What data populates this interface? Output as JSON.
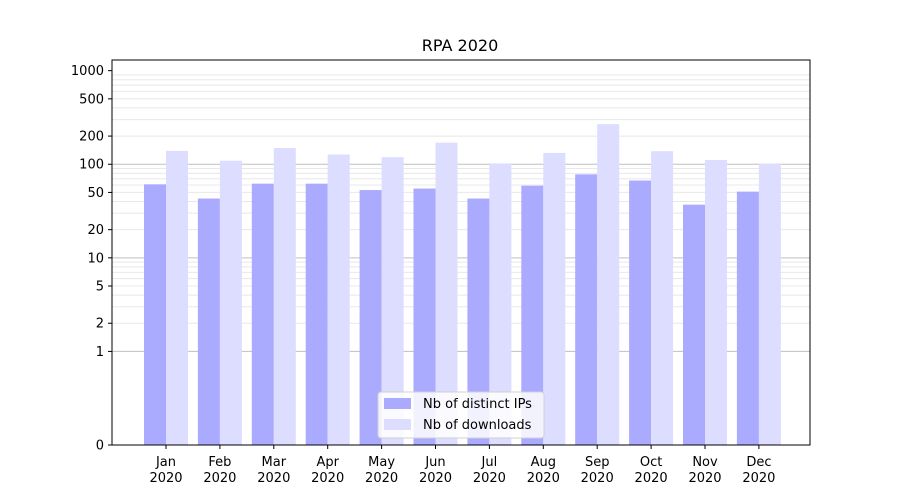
{
  "chart_data": {
    "type": "bar",
    "title": "RPA 2020",
    "xlabel": "",
    "ylabel": "",
    "yscale": "symlog",
    "ylim": [
      0,
      1300
    ],
    "yticks": [
      0,
      1,
      2,
      5,
      10,
      20,
      50,
      100,
      200,
      500,
      1000
    ],
    "major_gridlines": [
      1,
      10,
      100
    ],
    "categories": [
      [
        "Jan",
        "2020"
      ],
      [
        "Feb",
        "2020"
      ],
      [
        "Mar",
        "2020"
      ],
      [
        "Apr",
        "2020"
      ],
      [
        "May",
        "2020"
      ],
      [
        "Jun",
        "2020"
      ],
      [
        "Jul",
        "2020"
      ],
      [
        "Aug",
        "2020"
      ],
      [
        "Sep",
        "2020"
      ],
      [
        "Oct",
        "2020"
      ],
      [
        "Nov",
        "2020"
      ],
      [
        "Dec",
        "2020"
      ]
    ],
    "series": [
      {
        "name": "Nb of distinct IPs",
        "color": "#aaaaff",
        "values": [
          61,
          43,
          62,
          62,
          53,
          55,
          43,
          59,
          78,
          67,
          37,
          51
        ]
      },
      {
        "name": "Nb of downloads",
        "color": "#ddddff",
        "values": [
          139,
          109,
          149,
          127,
          119,
          170,
          102,
          132,
          268,
          138,
          111,
          101
        ]
      }
    ],
    "grid": true,
    "legend": "bottom-center"
  }
}
